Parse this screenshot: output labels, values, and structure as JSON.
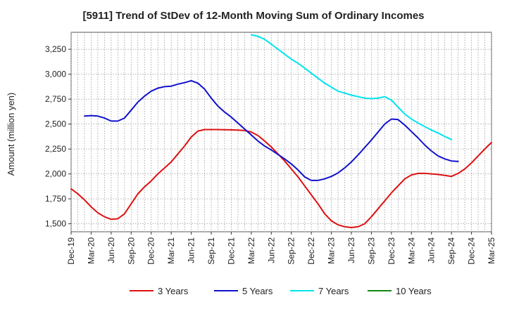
{
  "chart_data": {
    "type": "line",
    "title": "[5911]  Trend of StDev of 12-Month Moving Sum of Ordinary Incomes",
    "xlabel": "",
    "ylabel": "Amount (million yen)",
    "ylim": [
      1420,
      3420
    ],
    "yticks": [
      1500,
      1750,
      2000,
      2250,
      2500,
      2750,
      3000,
      3250
    ],
    "ytick_labels": [
      "1,500",
      "1,750",
      "2,000",
      "2,250",
      "2,500",
      "2,750",
      "3,000",
      "3,250"
    ],
    "x_tick_labels": [
      "Dec-19",
      "Mar-20",
      "Jun-20",
      "Sep-20",
      "Dec-20",
      "Mar-21",
      "Jun-21",
      "Sep-21",
      "Dec-21",
      "Mar-22",
      "Jun-22",
      "Sep-22",
      "Dec-22",
      "Mar-23",
      "Jun-23",
      "Sep-23",
      "Dec-23",
      "Mar-24",
      "Jun-24",
      "Sep-24",
      "Dec-24",
      "Mar-25"
    ],
    "x_start": "Dec-19",
    "x_months": 63,
    "grid": true,
    "legend_position": "bottom",
    "series": [
      {
        "name": "3 Years",
        "color": "#dd1111",
        "start_index": 0,
        "values": [
          1850,
          1800,
          1740,
          1670,
          1610,
          1570,
          1545,
          1550,
          1600,
          1700,
          1800,
          1870,
          1930,
          2000,
          2060,
          2120,
          2200,
          2280,
          2370,
          2430,
          2445,
          2445,
          2445,
          2443,
          2442,
          2440,
          2435,
          2420,
          2385,
          2330,
          2270,
          2200,
          2130,
          2050,
          1970,
          1880,
          1790,
          1700,
          1600,
          1530,
          1490,
          1470,
          1462,
          1470,
          1500,
          1570,
          1650,
          1730,
          1810,
          1880,
          1950,
          1990,
          2005,
          2005,
          2000,
          1995,
          1985,
          1975,
          2005,
          2050,
          2110,
          2180,
          2250,
          2315
        ]
      },
      {
        "name": "5 Years",
        "color": "#1111cc",
        "start_index": 2,
        "values": [
          2580,
          2585,
          2580,
          2560,
          2530,
          2530,
          2560,
          2640,
          2720,
          2780,
          2830,
          2860,
          2875,
          2880,
          2900,
          2915,
          2935,
          2910,
          2850,
          2760,
          2680,
          2620,
          2570,
          2510,
          2450,
          2390,
          2330,
          2280,
          2240,
          2195,
          2150,
          2100,
          2040,
          1970,
          1935,
          1935,
          1950,
          1975,
          2010,
          2060,
          2120,
          2190,
          2265,
          2340,
          2420,
          2500,
          2550,
          2545,
          2490,
          2425,
          2360,
          2290,
          2230,
          2180,
          2150,
          2130,
          2125
        ]
      },
      {
        "name": "7 Years",
        "color": "#00e5ee",
        "start_index": 27,
        "values": [
          3395,
          3380,
          3350,
          3300,
          3250,
          3200,
          3150,
          3110,
          3060,
          3010,
          2960,
          2910,
          2870,
          2830,
          2810,
          2790,
          2775,
          2760,
          2755,
          2760,
          2775,
          2740,
          2670,
          2600,
          2550,
          2510,
          2475,
          2440,
          2410,
          2375,
          2345
        ]
      },
      {
        "name": "10 Years",
        "color": "#118811",
        "start_index": 0,
        "values": []
      }
    ]
  }
}
